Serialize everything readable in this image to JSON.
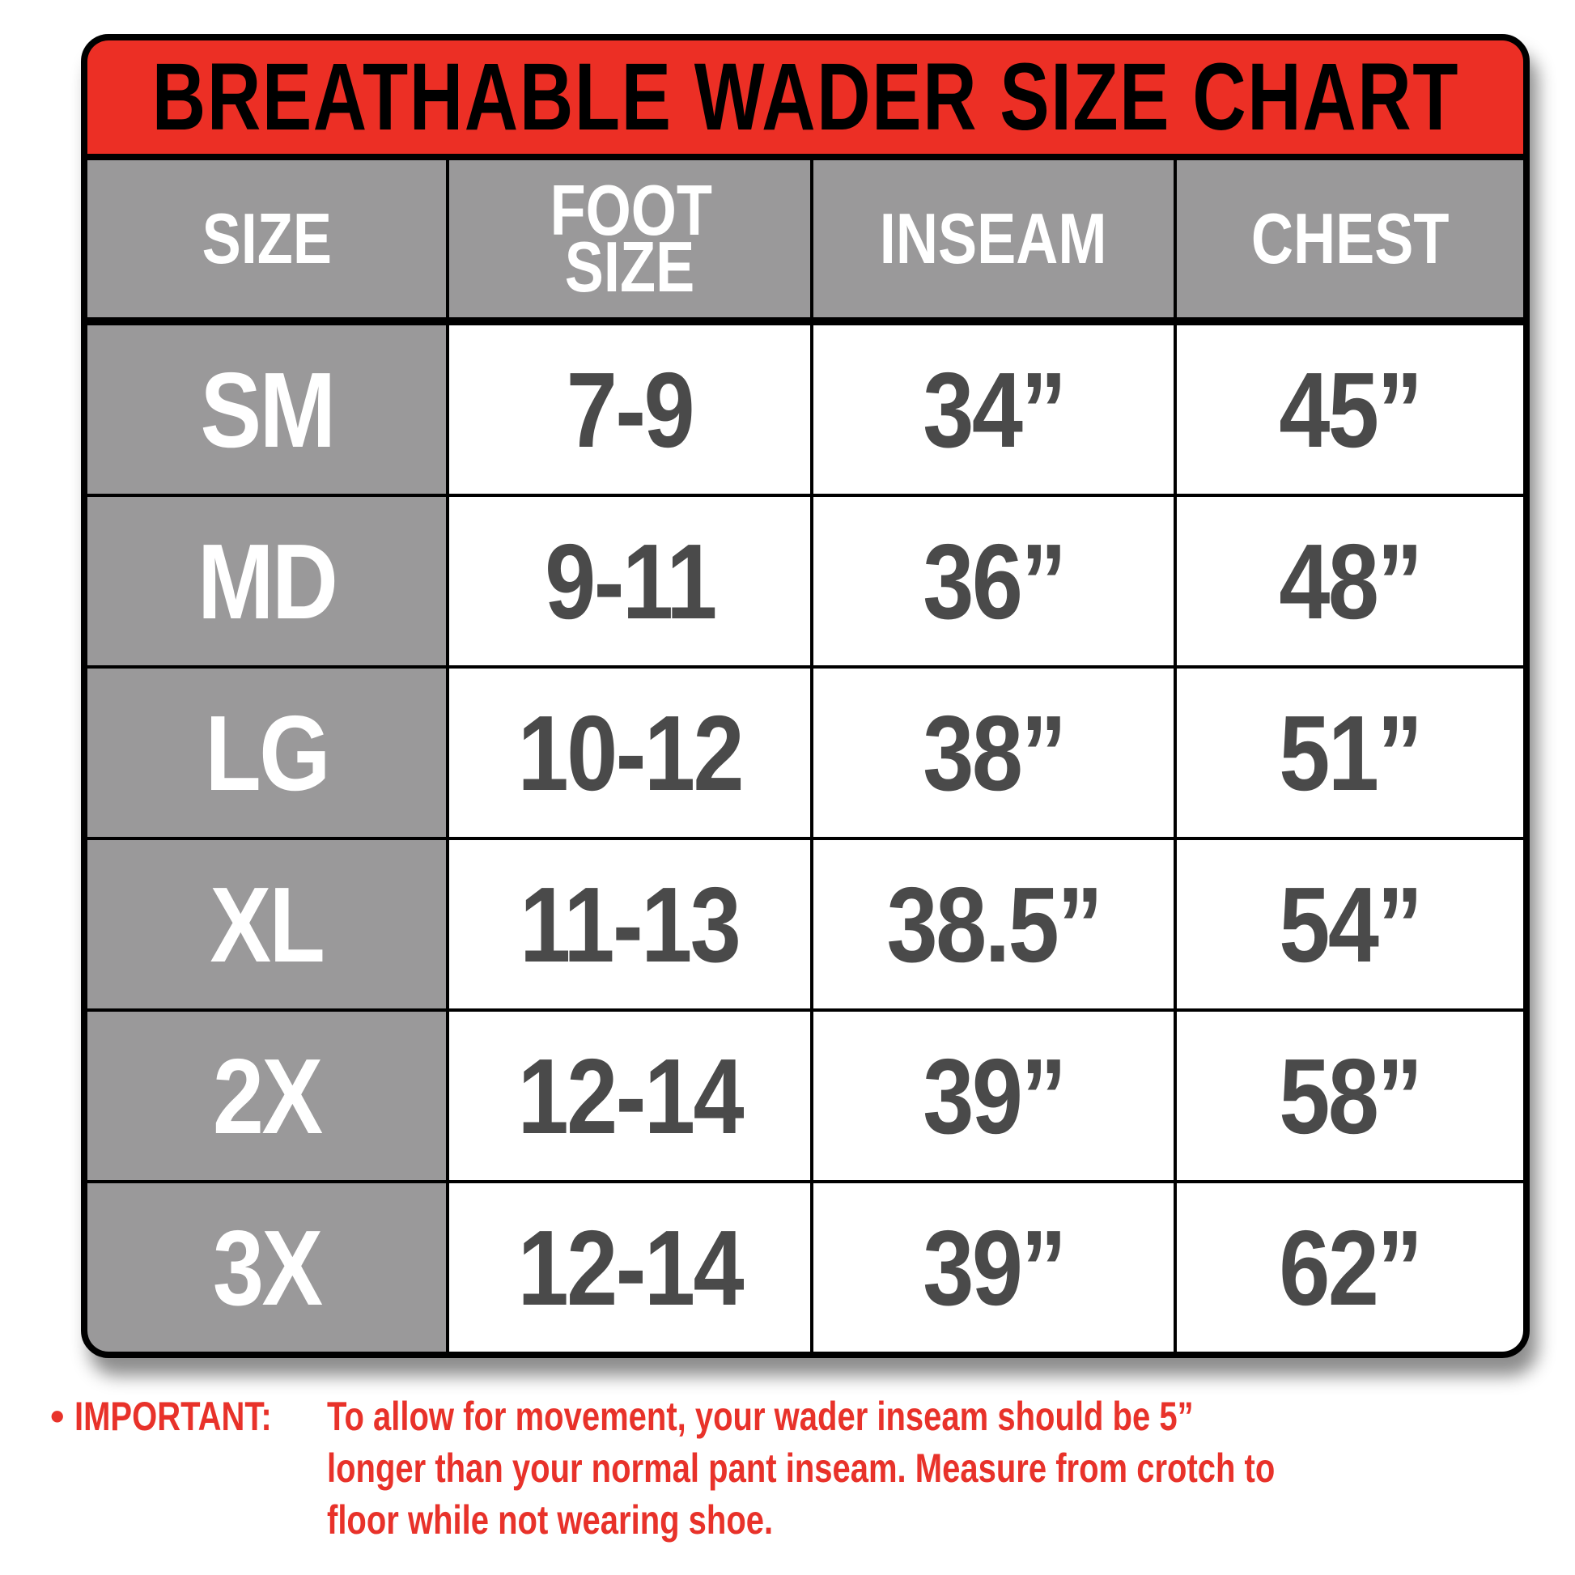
{
  "title": "BREATHABLE WADER SIZE CHART",
  "colors": {
    "header_red": "#ec2f25",
    "header_gray": "#9a999a",
    "value_text": "#4a4a4a",
    "note_red": "#e8322a"
  },
  "table": {
    "headers": [
      "SIZE",
      "FOOT SIZE",
      "INSEAM",
      "CHEST"
    ],
    "rows": [
      {
        "size": "SM",
        "foot": "7-9",
        "inseam": "34”",
        "chest": "45”"
      },
      {
        "size": "MD",
        "foot": "9-11",
        "inseam": "36”",
        "chest": "48”"
      },
      {
        "size": "LG",
        "foot": "10-12",
        "inseam": "38”",
        "chest": "51”"
      },
      {
        "size": "XL",
        "foot": "11-13",
        "inseam": "38.5”",
        "chest": "54”"
      },
      {
        "size": "2X",
        "foot": "12-14",
        "inseam": "39”",
        "chest": "58”"
      },
      {
        "size": "3X",
        "foot": "12-14",
        "inseam": "39”",
        "chest": "62”"
      }
    ]
  },
  "note": {
    "bullet": "•",
    "label": "IMPORTANT:",
    "lines": [
      "To allow for movement, your wader inseam should be 5”",
      "longer than your normal pant inseam. Measure from crotch to",
      "floor while not wearing shoe."
    ]
  }
}
